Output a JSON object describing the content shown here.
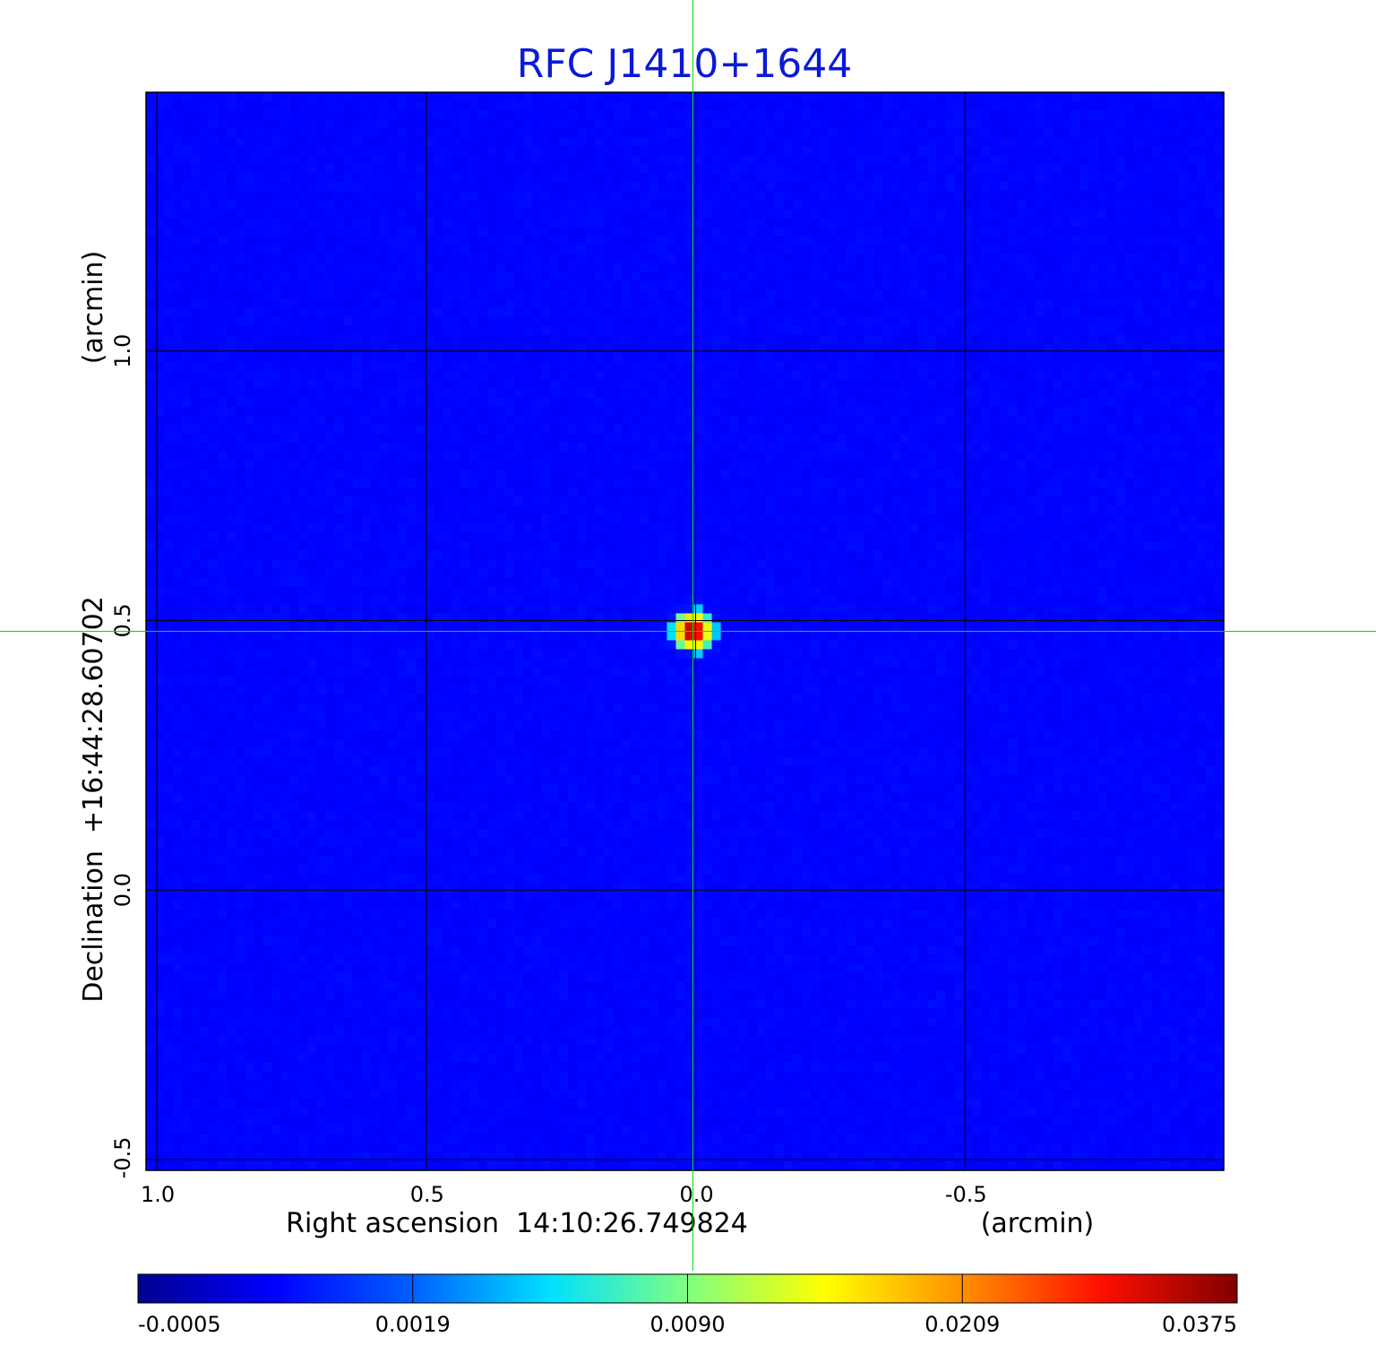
{
  "chart_data": {
    "type": "heatmap",
    "title": "RFC J1410+1644",
    "xlabel": "Right ascension  14:10:26.749824",
    "xunit": "(arcmin)",
    "ylabel": "Declination  +16:44:28.60702",
    "yunit": "(arcmin)",
    "xlim": [
      1.02,
      -0.98
    ],
    "ylim": [
      -0.52,
      1.48
    ],
    "x_ticks": [
      {
        "value": 1.0,
        "label": "1.0"
      },
      {
        "value": 0.5,
        "label": "0.5"
      },
      {
        "value": 0.0,
        "label": "0.0"
      },
      {
        "value": -0.5,
        "label": "-0.5"
      }
    ],
    "y_ticks": [
      {
        "value": -0.5,
        "label": "-0.5"
      },
      {
        "value": 0.0,
        "label": "0.0"
      },
      {
        "value": 0.5,
        "label": "0.5"
      },
      {
        "value": 1.0,
        "label": "1.0"
      }
    ],
    "grid": true,
    "crosshair": {
      "x": 0.005,
      "y": 0.48,
      "color": "#00dd00"
    },
    "source": {
      "x": 0.005,
      "y": 0.48,
      "peak": 0.0375
    },
    "noise_level": 0.0008,
    "colormap": "jet",
    "colorbar": {
      "ticks": [
        {
          "value": -0.0005,
          "label": "-0.0005"
        },
        {
          "value": 0.0019,
          "label": "0.0019"
        },
        {
          "value": 0.009,
          "label": "0.0090"
        },
        {
          "value": 0.0209,
          "label": "0.0209"
        },
        {
          "value": 0.0375,
          "label": "0.0375"
        }
      ]
    },
    "colors": {
      "title": "#0a1ad6",
      "grid": "#000000"
    }
  }
}
